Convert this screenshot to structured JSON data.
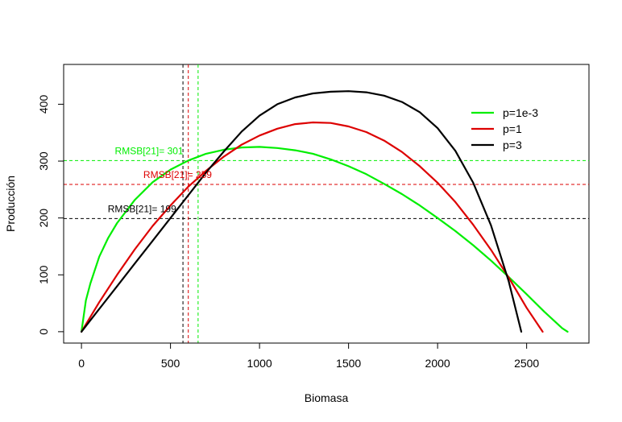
{
  "chart_data": {
    "type": "line",
    "title": "",
    "xlabel": "Biomasa",
    "ylabel": "Producción",
    "xlim": [
      -100,
      2850
    ],
    "ylim": [
      -20,
      470
    ],
    "xticks": [
      0,
      500,
      1000,
      1500,
      2000,
      2500
    ],
    "yticks": [
      0,
      100,
      200,
      300,
      400
    ],
    "grid": false,
    "legend_position": "top-right",
    "series": [
      {
        "name": "p=1e-3",
        "color": "#00ee00",
        "x": [
          0,
          25,
          50,
          100,
          150,
          200,
          300,
          400,
          500,
          600,
          700,
          800,
          900,
          1000,
          1100,
          1200,
          1300,
          1400,
          1500,
          1600,
          1700,
          1800,
          1900,
          2000,
          2100,
          2200,
          2300,
          2400,
          2500,
          2600,
          2700,
          2730
        ],
        "y": [
          0,
          55,
          85,
          132,
          165,
          191,
          232,
          263,
          285,
          301,
          313,
          320,
          324,
          325,
          323,
          319,
          313,
          303,
          291,
          277,
          260,
          242,
          222,
          200,
          177,
          152,
          125,
          96,
          66,
          35,
          6,
          0
        ]
      },
      {
        "name": "p=1",
        "color": "#dd0000",
        "x": [
          0,
          100,
          200,
          300,
          400,
          500,
          600,
          700,
          800,
          900,
          1000,
          1100,
          1200,
          1300,
          1400,
          1500,
          1600,
          1700,
          1800,
          1900,
          2000,
          2100,
          2200,
          2300,
          2400,
          2500,
          2590
        ],
        "y": [
          0,
          52,
          100,
          145,
          186,
          222,
          255,
          283,
          308,
          329,
          345,
          357,
          365,
          368,
          367,
          361,
          351,
          336,
          316,
          291,
          262,
          228,
          188,
          144,
          95,
          42,
          0
        ]
      },
      {
        "name": "p=3",
        "color": "#000000",
        "x": [
          0,
          100,
          200,
          300,
          400,
          500,
          600,
          700,
          800,
          900,
          1000,
          1100,
          1200,
          1300,
          1400,
          1500,
          1600,
          1700,
          1800,
          1900,
          2000,
          2100,
          2200,
          2300,
          2400,
          2470
        ],
        "y": [
          0,
          40,
          80,
          120,
          160,
          200,
          240,
          280,
          317,
          352,
          380,
          400,
          412,
          419,
          422,
          423,
          421,
          415,
          404,
          386,
          358,
          318,
          262,
          187,
          88,
          0
        ]
      }
    ],
    "vlines": [
      {
        "x": 570,
        "color": "#000000"
      },
      {
        "x": 600,
        "color": "#dd0000"
      },
      {
        "x": 655,
        "color": "#00ee00"
      }
    ],
    "hlines": [
      {
        "y": 301,
        "color": "#00ee00",
        "label": "RMSB[21]= 301",
        "label_x": 380
      },
      {
        "y": 259,
        "color": "#dd0000",
        "label": "RMSB[21]= 259",
        "label_x": 540
      },
      {
        "y": 199,
        "color": "#000000",
        "label": "RMSB[21]= 199",
        "label_x": 340
      }
    ]
  }
}
